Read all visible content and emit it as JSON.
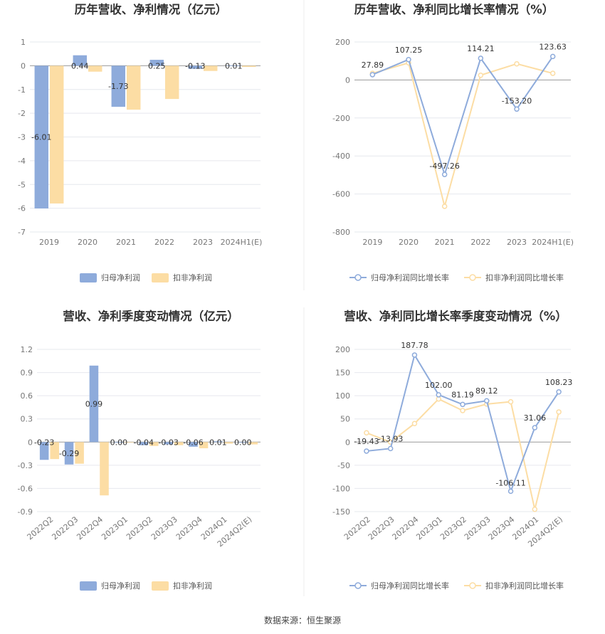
{
  "colors": {
    "primary": "#8eabdb",
    "secondary": "#fcdda4",
    "grid": "#e6e8ee",
    "axis": "#999999"
  },
  "source_note": "数据来源：恒生聚源",
  "legend_labels": {
    "bar_primary": "归母净利润",
    "bar_secondary": "扣非净利润",
    "line_primary": "归母净利润同比增长率",
    "line_secondary": "扣非净利润同比增长率"
  },
  "chart_data": [
    {
      "type": "bar",
      "title": "历年营收、净利情况（亿元）",
      "categories": [
        "2019",
        "2020",
        "2021",
        "2022",
        "2023",
        "2024H1(E)"
      ],
      "ylim": [
        -7,
        1
      ],
      "yticks": [
        1,
        0,
        -1,
        -2,
        -3,
        -4,
        -5,
        -6,
        -7
      ],
      "series": [
        {
          "name": "归母净利润",
          "values": [
            -6.01,
            0.44,
            -1.73,
            0.25,
            -0.13,
            0.01
          ],
          "labels": [
            "-6.01",
            "0.44",
            "-1.73",
            "0.25",
            "-0.13",
            "0.01"
          ]
        },
        {
          "name": "扣非净利润",
          "values": [
            -5.8,
            -0.25,
            -1.85,
            -1.4,
            -0.22,
            -0.05
          ]
        }
      ]
    },
    {
      "type": "line",
      "title": "历年营收、净利同比增长率情况（%）",
      "categories": [
        "2019",
        "2020",
        "2021",
        "2022",
        "2023",
        "2024H1(E)"
      ],
      "ylim": [
        -800,
        200
      ],
      "yticks": [
        200,
        0,
        -200,
        -400,
        -600,
        -800
      ],
      "series": [
        {
          "name": "归母净利润同比增长率",
          "values": [
            27.89,
            107.25,
            -497.26,
            114.21,
            -153.2,
            123.63
          ],
          "labels": [
            "27.89",
            "107.25",
            "-497.26",
            "114.21",
            "-153.20",
            "123.63"
          ]
        },
        {
          "name": "扣非净利润同比增长率",
          "values": [
            35,
            90,
            -665,
            25,
            85,
            35
          ]
        }
      ]
    },
    {
      "type": "bar",
      "title": "营收、净利季度变动情况（亿元）",
      "categories": [
        "2022Q2",
        "2022Q3",
        "2022Q4",
        "2023Q1",
        "2023Q2",
        "2023Q3",
        "2023Q4",
        "2024Q1",
        "2024Q2(E)"
      ],
      "ylim": [
        -0.9,
        1.2
      ],
      "yticks": [
        1.2,
        0.9,
        0.6,
        0.3,
        0,
        -0.3,
        -0.6,
        -0.9
      ],
      "series": [
        {
          "name": "归母净利润",
          "values": [
            -0.23,
            -0.29,
            0.99,
            0.0,
            -0.04,
            -0.03,
            -0.06,
            0.01,
            0.0
          ],
          "labels": [
            "-0.23",
            "-0.29",
            "0.99",
            "0.00",
            "-0.04",
            "-0.03",
            "-0.06",
            "0.01",
            "0.00"
          ]
        },
        {
          "name": "扣非净利润",
          "values": [
            -0.22,
            -0.28,
            -0.69,
            0.0,
            -0.05,
            -0.04,
            -0.08,
            -0.02,
            -0.03
          ]
        }
      ]
    },
    {
      "type": "line",
      "title": "营收、净利同比增长率季度变动情况（%）",
      "categories": [
        "2022Q2",
        "2022Q3",
        "2022Q4",
        "2023Q1",
        "2023Q2",
        "2023Q3",
        "2023Q4",
        "2024Q1",
        "2024Q2(E)"
      ],
      "ylim": [
        -150,
        200
      ],
      "yticks": [
        200,
        150,
        100,
        50,
        0,
        -50,
        -100,
        -150
      ],
      "series": [
        {
          "name": "归母净利润同比增长率",
          "values": [
            -19.43,
            -13.93,
            187.78,
            102.0,
            81.19,
            89.12,
            -106.11,
            31.06,
            108.23
          ],
          "labels": [
            "-19.43",
            "-13.93",
            "187.78",
            "102.00",
            "81.19",
            "89.12",
            "-106.11",
            "31.06",
            "108.23"
          ]
        },
        {
          "name": "扣非净利润同比增长率",
          "values": [
            20,
            0,
            40,
            93,
            68,
            82,
            87,
            -145,
            65
          ]
        }
      ]
    }
  ]
}
